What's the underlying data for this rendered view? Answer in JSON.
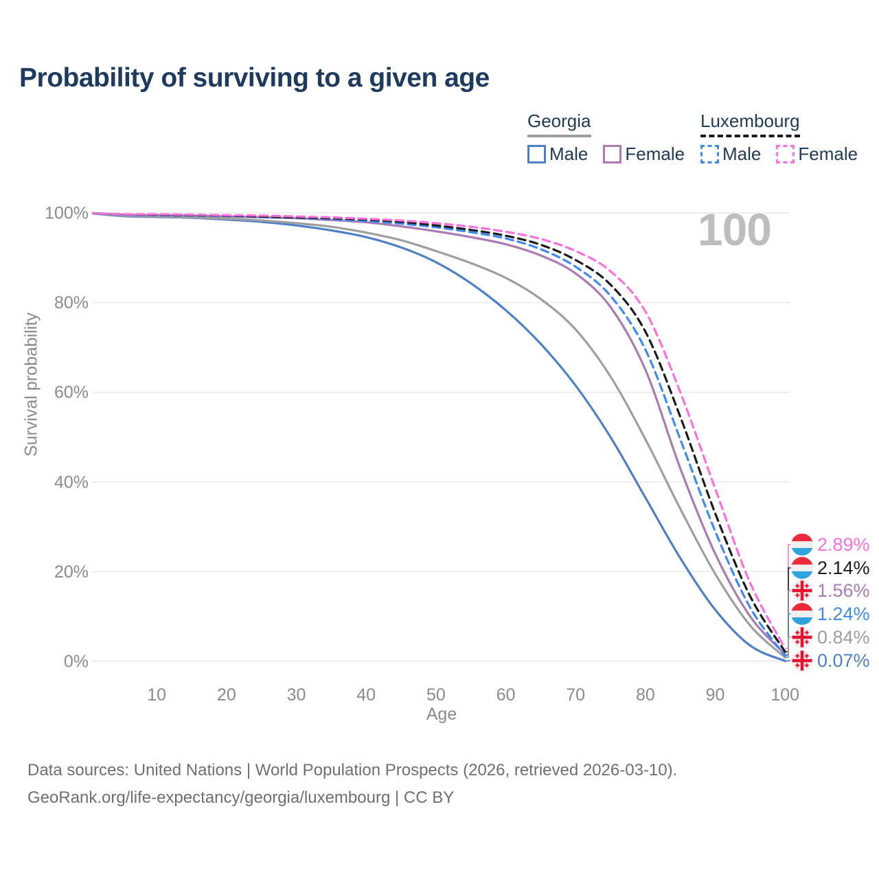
{
  "title": "Probability of surviving to a given age",
  "legend": {
    "groups": [
      {
        "name": "Georgia",
        "line_style": "solid",
        "underline_color": "#9e9e9e",
        "items": [
          {
            "label": "Male",
            "color": "#4e7fc9"
          },
          {
            "label": "Female",
            "color": "#aa7ab0"
          }
        ]
      },
      {
        "name": "Luxembourg",
        "line_style": "dashed",
        "underline_color": "#1b1b1b",
        "items": [
          {
            "label": "Male",
            "color": "#3f8af2"
          },
          {
            "label": "Female",
            "color": "#fb70dd"
          }
        ]
      }
    ]
  },
  "chart_data": {
    "type": "line",
    "xlabel": "Age",
    "ylabel": "Survival probability",
    "xlim": [
      0,
      100
    ],
    "ylim": [
      0,
      100
    ],
    "grid": "horizontal",
    "watermark": "100",
    "x_ticks": [
      10,
      20,
      30,
      40,
      50,
      60,
      70,
      80,
      90,
      100
    ],
    "y_ticks": [
      {
        "value": 0,
        "label": "0%"
      },
      {
        "value": 20,
        "label": "20%"
      },
      {
        "value": 40,
        "label": "40%"
      },
      {
        "value": 60,
        "label": "60%"
      },
      {
        "value": 80,
        "label": "80%"
      },
      {
        "value": 100,
        "label": "100%"
      }
    ],
    "ages": [
      0,
      5,
      10,
      15,
      20,
      25,
      30,
      35,
      40,
      45,
      50,
      55,
      60,
      65,
      70,
      75,
      80,
      85,
      90,
      95,
      100
    ],
    "series": [
      {
        "id": "georgia-male",
        "country": "Georgia",
        "group_label": "Male",
        "color": "#4e7fc9",
        "dash": false,
        "flag": "georgia",
        "end_label": "0.07%",
        "end_value": 0.07,
        "values": [
          100,
          99.3,
          99.1,
          98.9,
          98.5,
          98.0,
          97.2,
          96.1,
          94.6,
          92.3,
          89.0,
          84.3,
          78.3,
          70.8,
          61.5,
          50.0,
          36.5,
          23.0,
          11.5,
          3.5,
          0.07
        ]
      },
      {
        "id": "georgia-overall",
        "country": "Georgia",
        "group_label": "Georgia",
        "color": "#9e9e9e",
        "dash": false,
        "flag": "georgia",
        "end_label": "0.84%",
        "end_value": 0.84,
        "values": [
          100,
          99.4,
          99.2,
          99.0,
          98.7,
          98.3,
          97.7,
          96.9,
          95.6,
          93.9,
          91.5,
          88.8,
          85.5,
          80.8,
          74.0,
          63.5,
          49.5,
          34.0,
          19.5,
          8.0,
          0.84
        ]
      },
      {
        "id": "georgia-female",
        "country": "Georgia",
        "group_label": "Female",
        "color": "#aa7ab0",
        "dash": false,
        "flag": "georgia",
        "end_label": "1.56%",
        "end_value": 1.56,
        "values": [
          100,
          99.6,
          99.5,
          99.4,
          99.2,
          99.0,
          98.8,
          98.4,
          97.9,
          97.0,
          95.9,
          94.6,
          93.0,
          90.5,
          86.5,
          79.0,
          65.0,
          43.0,
          24.0,
          10.0,
          1.56
        ]
      },
      {
        "id": "luxembourg-male",
        "country": "Luxembourg",
        "group_label": "Male",
        "color": "#3f8af2",
        "dash": true,
        "flag": "luxembourg",
        "end_label": "1.24%",
        "end_value": 1.24,
        "values": [
          100,
          99.6,
          99.5,
          99.4,
          99.3,
          99.1,
          98.9,
          98.6,
          98.2,
          97.6,
          96.8,
          95.7,
          94.3,
          91.9,
          88.0,
          81.5,
          69.5,
          49.5,
          29.0,
          12.0,
          1.24
        ]
      },
      {
        "id": "luxembourg-overall",
        "country": "Luxembourg",
        "group_label": "Luxembourg",
        "color": "#1b1b1b",
        "dash": true,
        "flag": "luxembourg",
        "end_label": "2.14%",
        "end_value": 2.14,
        "values": [
          100,
          99.7,
          99.6,
          99.5,
          99.4,
          99.2,
          99.0,
          98.8,
          98.5,
          98.0,
          97.2,
          96.2,
          94.9,
          92.9,
          89.5,
          84.0,
          73.5,
          54.5,
          33.0,
          14.5,
          2.14
        ]
      },
      {
        "id": "luxembourg-female",
        "country": "Luxembourg",
        "group_label": "Female",
        "color": "#fb70dd",
        "dash": true,
        "flag": "luxembourg",
        "end_label": "2.89%",
        "end_value": 2.89,
        "values": [
          100,
          99.7,
          99.7,
          99.6,
          99.5,
          99.4,
          99.2,
          99.0,
          98.7,
          98.3,
          97.7,
          96.9,
          95.8,
          94.2,
          91.5,
          87.0,
          78.0,
          60.0,
          38.5,
          17.5,
          2.89
        ]
      }
    ]
  },
  "footer": {
    "line1": "Data sources: United Nations | World Population Prospects (2026, retrieved 2026-03-10).",
    "line2": "GeoRank.org/life-expectancy/georgia/luxembourg | CC BY"
  }
}
